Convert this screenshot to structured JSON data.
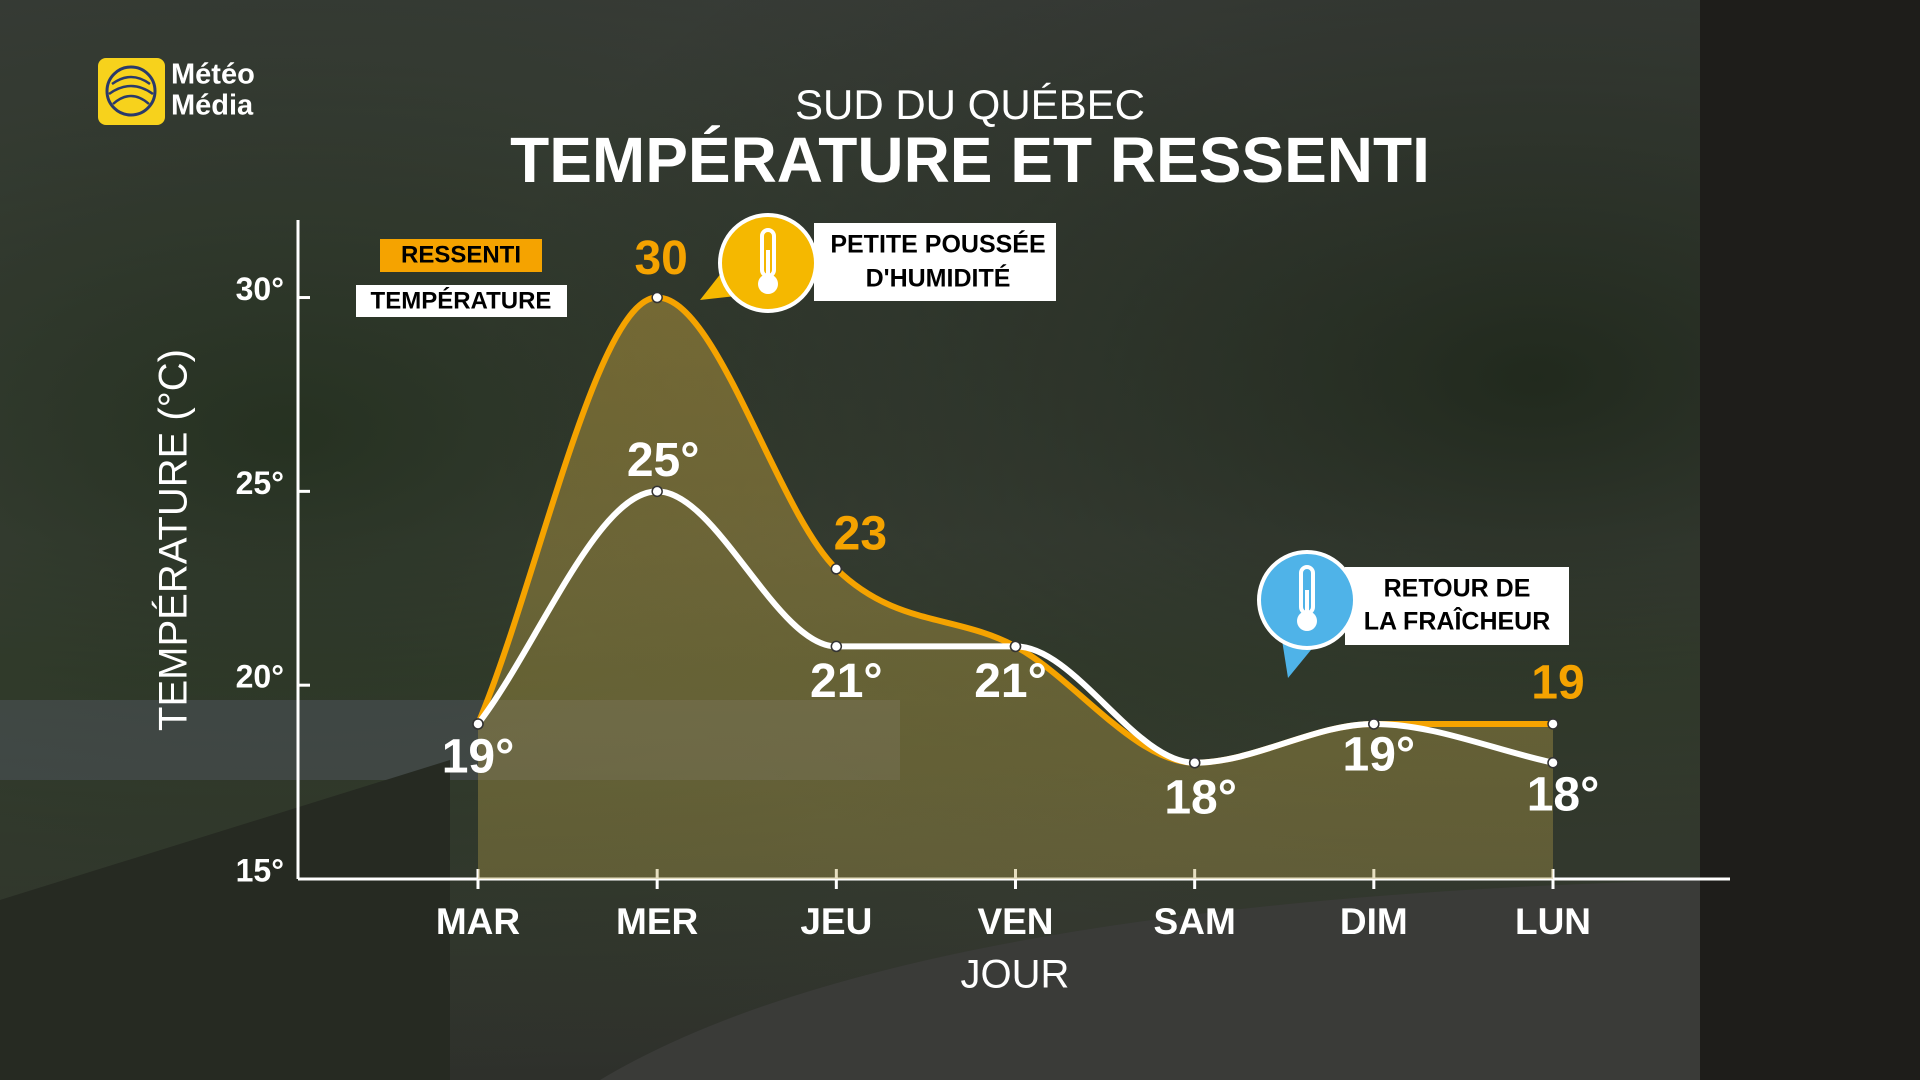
{
  "logo": {
    "line1": "Météo",
    "line2": "Média"
  },
  "chart_data": {
    "type": "line",
    "subtitle": "SUD DU QUÉBEC",
    "title": "TEMPÉRATURE ET RESSENTI",
    "x_label": "JOUR",
    "y_label": "TEMPÉRATURE (°C)",
    "categories": [
      "MAR",
      "MER",
      "JEU",
      "VEN",
      "SAM",
      "DIM",
      "LUN"
    ],
    "series": [
      {
        "name": "RESSENTI",
        "color": "#f5a300",
        "values": [
          19,
          30,
          23,
          21,
          18,
          19,
          19
        ],
        "value_labels": [
          null,
          "30",
          "23",
          null,
          null,
          null,
          "19"
        ]
      },
      {
        "name": "TEMPÉRATURE",
        "color": "#ffffff",
        "values": [
          19,
          25,
          21,
          21,
          18,
          19,
          18
        ],
        "value_labels": [
          "19°",
          "25°",
          "21°",
          "21°",
          "18°",
          "19°",
          "18°"
        ]
      }
    ],
    "ylim": [
      15,
      32
    ],
    "yticks": [
      {
        "value": 15,
        "label": "15°"
      },
      {
        "value": 20,
        "label": "20°"
      },
      {
        "value": 25,
        "label": "25°"
      },
      {
        "value": 30,
        "label": "30°"
      }
    ],
    "annotations": [
      {
        "line1": "PETITE POUSSÉE",
        "line2": "D'HUMIDITÉ"
      },
      {
        "line1": "RETOUR DE",
        "line2": "LA FRAÎCHEUR"
      }
    ]
  }
}
